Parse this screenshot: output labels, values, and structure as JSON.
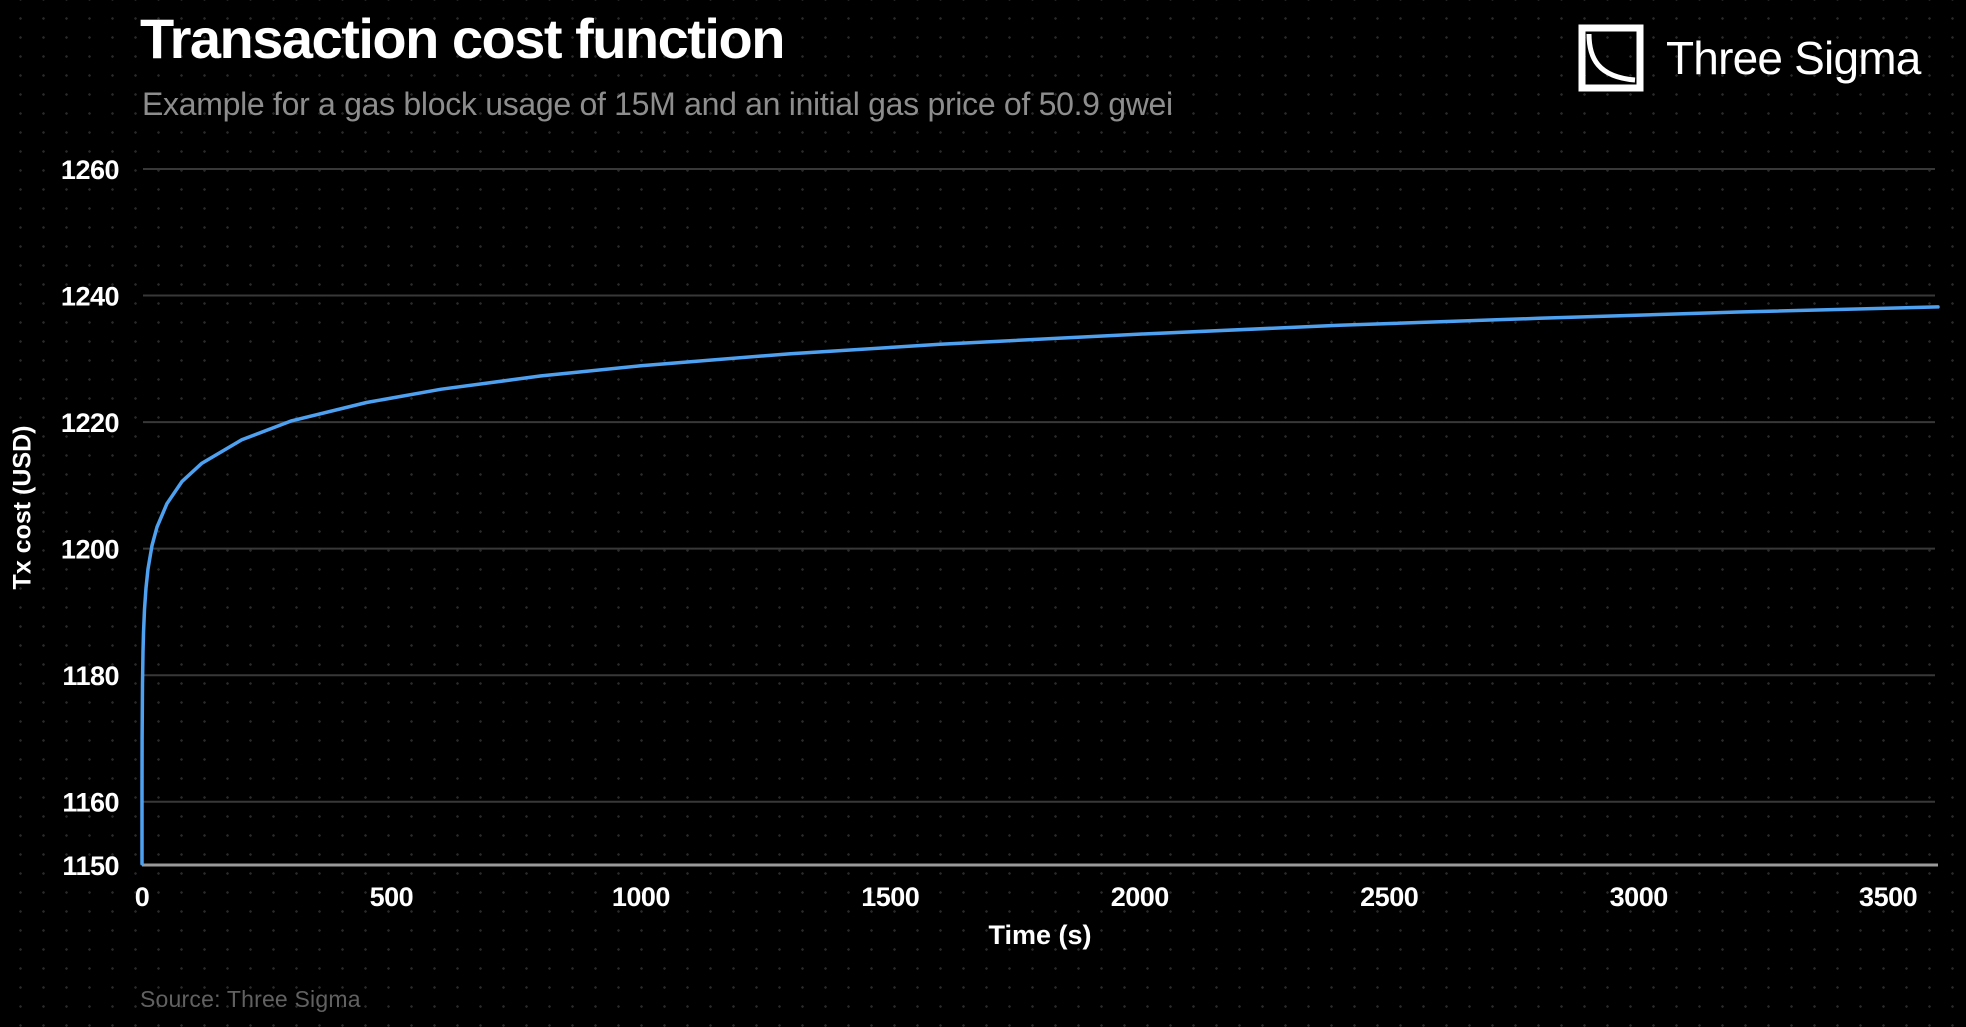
{
  "header": {
    "title": "Transaction cost function",
    "subtitle": "Example for a gas block usage of 15M and an initial gas price of 50.9 gwei"
  },
  "brand": {
    "name": "Three Sigma",
    "logo_icon": "decay-curve-square-icon"
  },
  "footer": {
    "source": "Source: Three Sigma"
  },
  "chart_data": {
    "type": "line",
    "title": "Transaction cost function",
    "subtitle": "Example for a gas block usage of 15M and an initial gas price of 50.9 gwei",
    "xlabel": "Time (s)",
    "ylabel": "Tx cost (USD)",
    "xlim": [
      0,
      3600
    ],
    "ylim": [
      1150,
      1263
    ],
    "x_ticks": [
      0,
      500,
      1000,
      1500,
      2000,
      2500,
      3000,
      3500
    ],
    "y_ticks": [
      1150,
      1160,
      1180,
      1200,
      1220,
      1240,
      1260
    ],
    "grid": "horizontal-only",
    "legend": "none",
    "colors": {
      "line": "#4da1f0",
      "gridline": "#383838",
      "axis_line": "#9a9a9a",
      "background": "#000000",
      "tick_label": "#ffffff",
      "subtitle": "#8d8d8d",
      "source": "#616161"
    },
    "series": [
      {
        "name": "Tx cost (USD)",
        "color": "#4da1f0",
        "points": [
          [
            0.02,
            1150.2
          ],
          [
            0.05,
            1156.9
          ],
          [
            0.1,
            1161.9
          ],
          [
            0.3,
            1169.9
          ],
          [
            1,
            1178.7
          ],
          [
            2,
            1183.7
          ],
          [
            3,
            1186.7
          ],
          [
            5,
            1190.4
          ],
          [
            8,
            1193.8
          ],
          [
            12,
            1196.8
          ],
          [
            20,
            1200.5
          ],
          [
            30,
            1203.4
          ],
          [
            50,
            1207.1
          ],
          [
            80,
            1210.6
          ],
          [
            120,
            1213.5
          ],
          [
            200,
            1217.2
          ],
          [
            300,
            1220.2
          ],
          [
            450,
            1223.1
          ],
          [
            600,
            1225.2
          ],
          [
            800,
            1227.3
          ],
          [
            1000,
            1228.9
          ],
          [
            1300,
            1230.8
          ],
          [
            1600,
            1232.3
          ],
          [
            2000,
            1233.9
          ],
          [
            2400,
            1235.3
          ],
          [
            2800,
            1236.4
          ],
          [
            3200,
            1237.4
          ],
          [
            3600,
            1238.2
          ]
        ]
      }
    ]
  }
}
